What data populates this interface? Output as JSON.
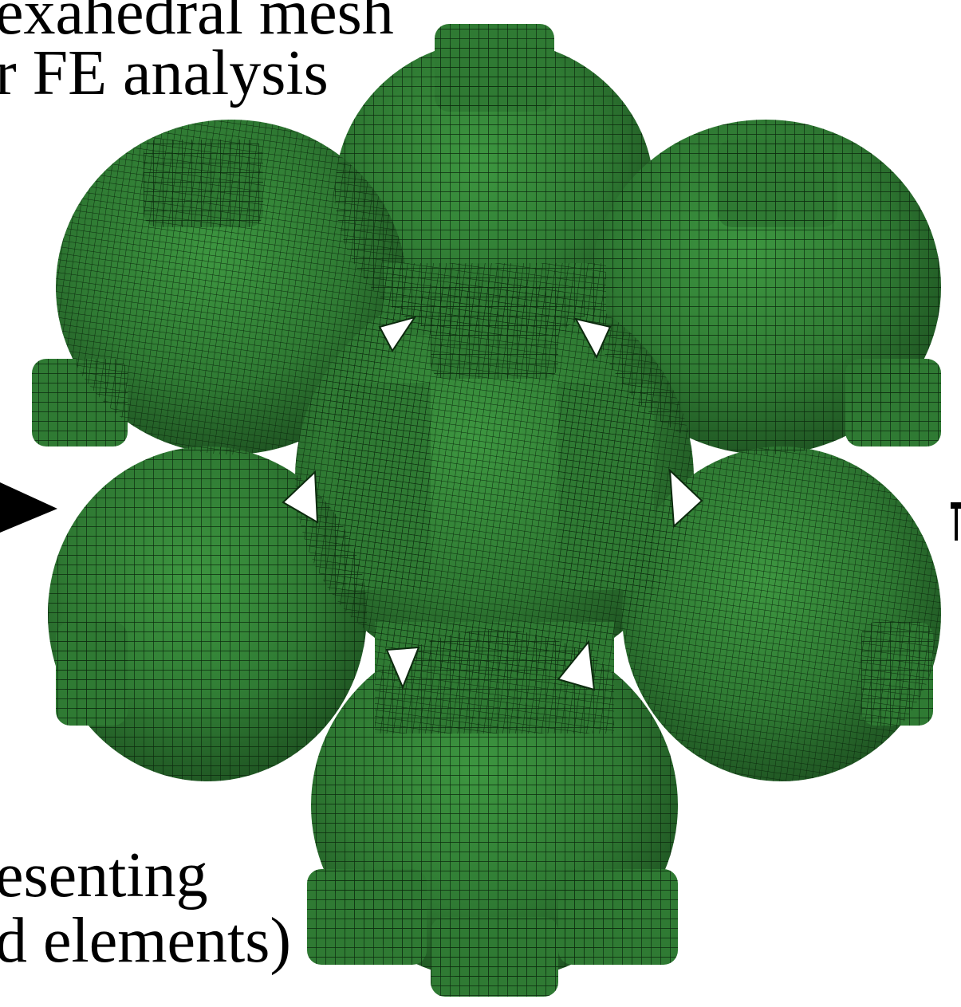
{
  "captions": {
    "top_line1": "exahedral mesh",
    "top_line2": "r FE analysis",
    "bottom_line1": "esenting",
    "bottom_line2": "d elements)"
  },
  "figure": {
    "mesh_color": "#2f7a33",
    "mesh_shadow": "#1d5020",
    "mesh_highlight": "#3d9640",
    "grid_line_color": "#0c2a0e",
    "background": "#ffffff",
    "arrow_color": "#000000"
  }
}
